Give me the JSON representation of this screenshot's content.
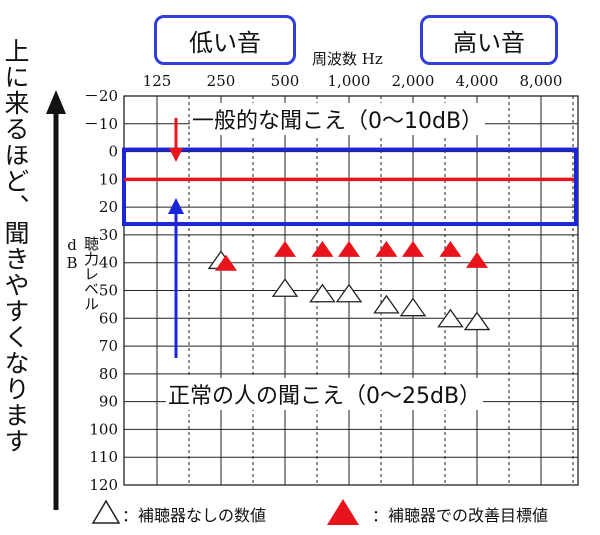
{
  "labels": {
    "low_tone": "低い音",
    "high_tone": "高い音",
    "freq_title": "周波数 Hz",
    "ylabel": "聴力レベル dB",
    "left_note": "上に来るほど、聞きやすくなります",
    "normal_hearing": "一般的な聞こえ（0～10dB）",
    "normal_person": "正常の人の聞こえ（0～25dB）",
    "legend_open": "：補聴器なしの数値",
    "legend_filled": "：補聴器での改善目標値"
  },
  "colors": {
    "red": "#e8141b",
    "blue": "#1d25d8",
    "pill_border": "#2f3fd8",
    "grid": "#222222"
  },
  "chart_data": {
    "type": "scatter",
    "x_ticks": [
      "125",
      "250",
      "500",
      "1,000",
      "2,000",
      "4,000",
      "8,000"
    ],
    "y_ticks": [
      "－20",
      "－10",
      "0",
      "10",
      "20",
      "30",
      "40",
      "50",
      "60",
      "70",
      "80",
      "90",
      "100",
      "110",
      "120"
    ],
    "ylim": [
      -20,
      120
    ],
    "y_inverted": true,
    "x_scale": "log2 (half-octave grid)",
    "reference_line_db": 10,
    "normal_band_db": [
      0,
      25
    ],
    "series": [
      {
        "name": "補聴器なしの数値",
        "marker": "open-triangle",
        "points": [
          {
            "freq": 250,
            "db": 39
          },
          {
            "freq": 500,
            "db": 49
          },
          {
            "freq": 750,
            "db": 51
          },
          {
            "freq": 1000,
            "db": 51
          },
          {
            "freq": 1500,
            "db": 55
          },
          {
            "freq": 2000,
            "db": 56
          },
          {
            "freq": 3000,
            "db": 60
          },
          {
            "freq": 4000,
            "db": 61
          }
        ]
      },
      {
        "name": "補聴器での改善目標値",
        "marker": "filled-triangle",
        "points": [
          {
            "freq": 250,
            "db": 40
          },
          {
            "freq": 500,
            "db": 35
          },
          {
            "freq": 750,
            "db": 35
          },
          {
            "freq": 1000,
            "db": 35
          },
          {
            "freq": 1500,
            "db": 35
          },
          {
            "freq": 2000,
            "db": 35
          },
          {
            "freq": 3000,
            "db": 35
          },
          {
            "freq": 4000,
            "db": 39
          }
        ]
      }
    ]
  }
}
